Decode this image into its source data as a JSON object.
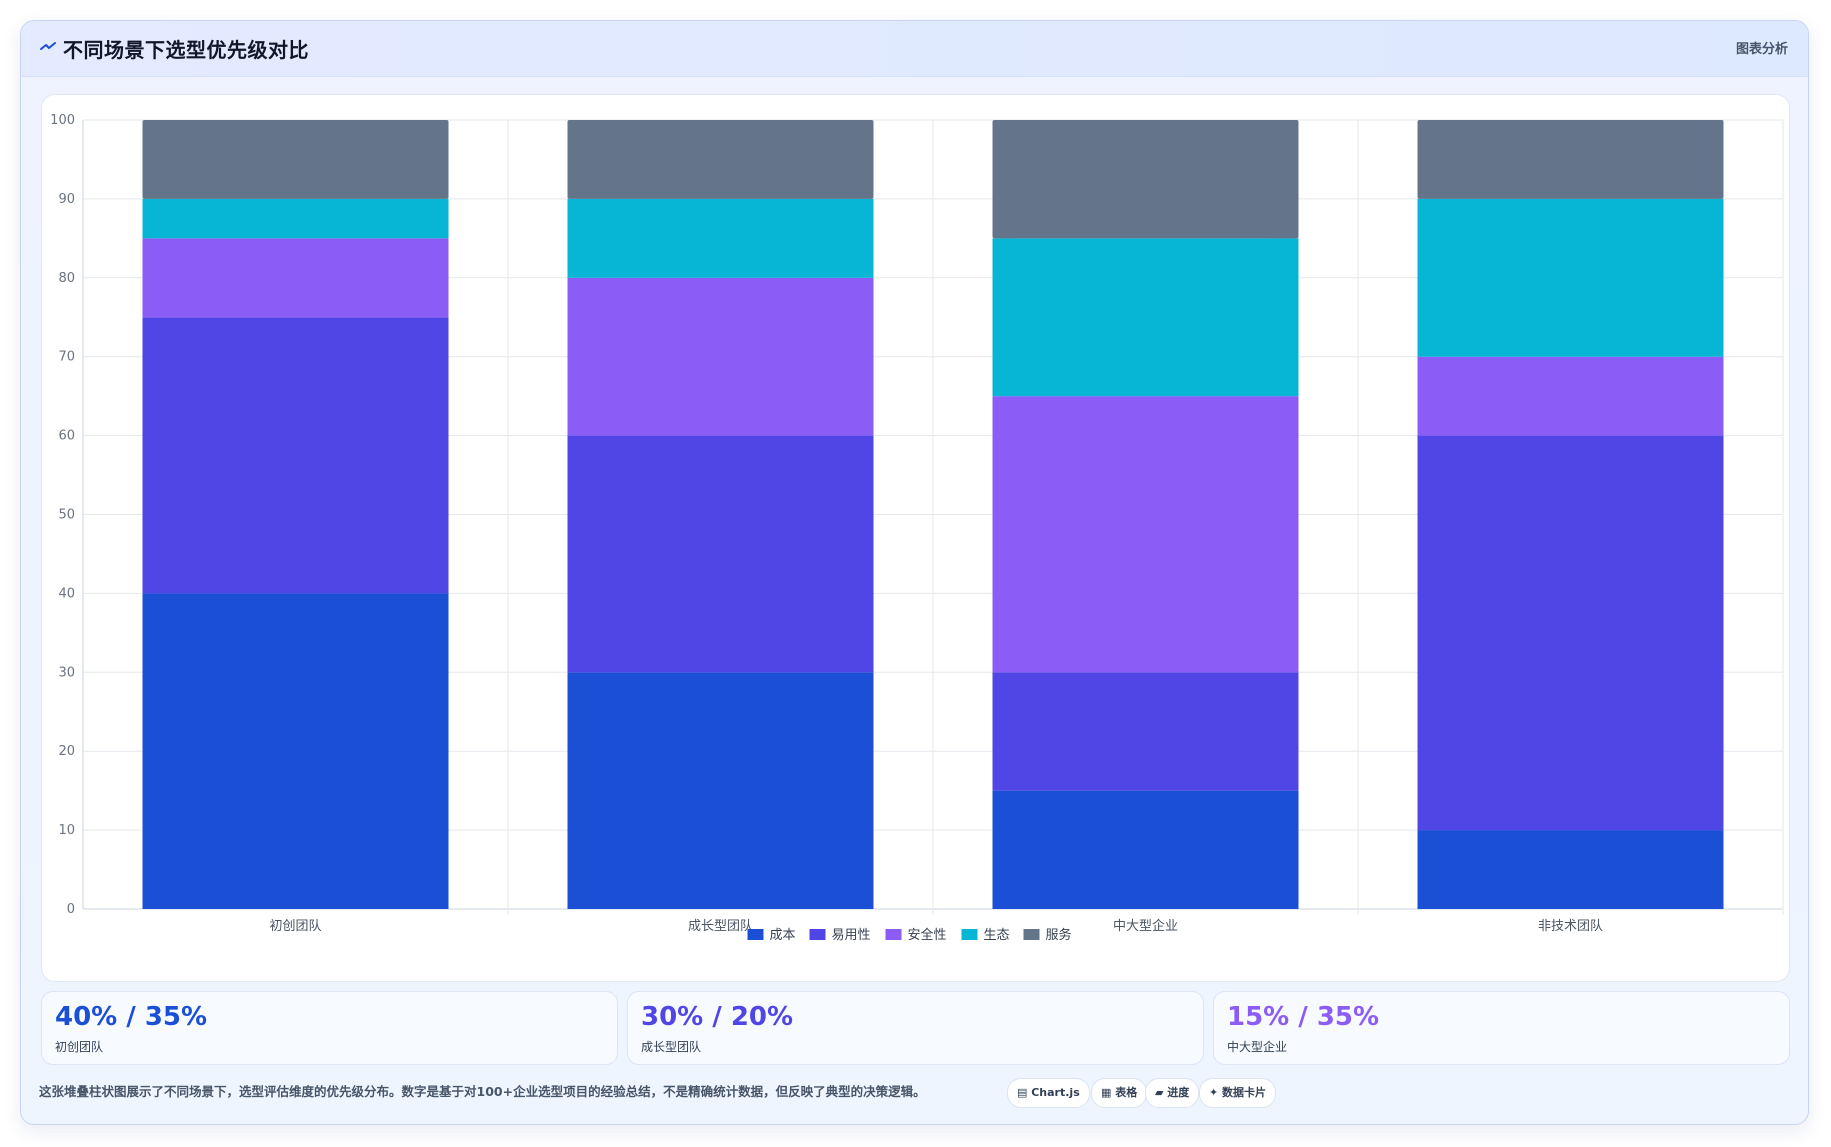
{
  "header": {
    "title": "不同场景下选型优先级对比",
    "right_label": "图表分析"
  },
  "colors": {
    "成本": "#1b4fd6",
    "易用性": "#4f46e5",
    "安全性": "#8b5cf6",
    "生态": "#06b6d4",
    "服务": "#64748b"
  },
  "chart_data": {
    "type": "bar",
    "stacked": true,
    "categories": [
      "初创团队",
      "成长型团队",
      "中大型企业",
      "非技术团队"
    ],
    "series": [
      {
        "name": "成本",
        "values": [
          40,
          30,
          15,
          10
        ]
      },
      {
        "name": "易用性",
        "values": [
          35,
          30,
          15,
          50
        ]
      },
      {
        "name": "安全性",
        "values": [
          10,
          20,
          35,
          10
        ]
      },
      {
        "name": "生态",
        "values": [
          5,
          10,
          20,
          20
        ]
      },
      {
        "name": "服务",
        "values": [
          10,
          10,
          15,
          10
        ]
      }
    ],
    "ylim": [
      0,
      100
    ],
    "yticks": [
      0,
      10,
      20,
      30,
      40,
      50,
      60,
      70,
      80,
      90,
      100
    ],
    "grid": true,
    "legend": "bottom-center"
  },
  "stats": [
    {
      "value": "40% / 35%",
      "label": "初创团队",
      "color": "#1b4fd6"
    },
    {
      "value": "30% / 20%",
      "label": "成长型团队",
      "color": "#4f46e5"
    },
    {
      "value": "15% / 35%",
      "label": "中大型企业",
      "color": "#8b5cf6"
    }
  ],
  "footer": {
    "note": "这张堆叠柱状图展示了不同场景下，选型评估维度的优先级分布。数字是基于对100+企业选型项目的经验总结，不是精确统计数据，但反映了典型的决策逻辑。",
    "chips": [
      "Chart.js",
      "表格",
      "进度",
      "数据卡片"
    ]
  }
}
